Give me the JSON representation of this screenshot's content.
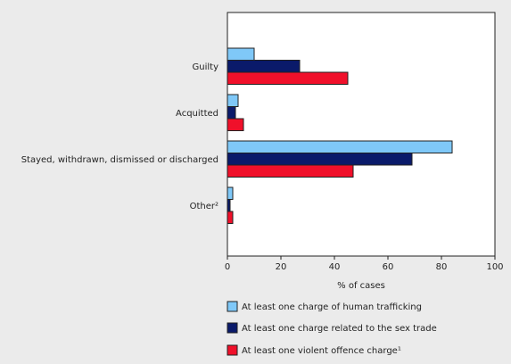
{
  "chart_data": {
    "type": "bar",
    "orientation": "horizontal",
    "title": "",
    "xlabel": "% of cases",
    "ylabel": "",
    "xlim": [
      0,
      100
    ],
    "xticks": [
      0,
      20,
      40,
      60,
      80,
      100
    ],
    "categories": [
      "Guilty",
      "Acquitted",
      "Stayed, withdrawn, dismissed or discharged",
      "Other²"
    ],
    "series": [
      {
        "name": "At least one charge of human trafficking",
        "color": "#7fc8f8",
        "values": [
          10,
          4,
          84,
          2
        ]
      },
      {
        "name": "At least one charge related to the sex trade",
        "color": "#0a1a6a",
        "values": [
          27,
          3,
          69,
          1
        ]
      },
      {
        "name": "At least one violent offence charge¹",
        "color": "#f0102a",
        "values": [
          45,
          6,
          47,
          2
        ]
      }
    ],
    "grid": false,
    "legend_position": "bottom"
  }
}
